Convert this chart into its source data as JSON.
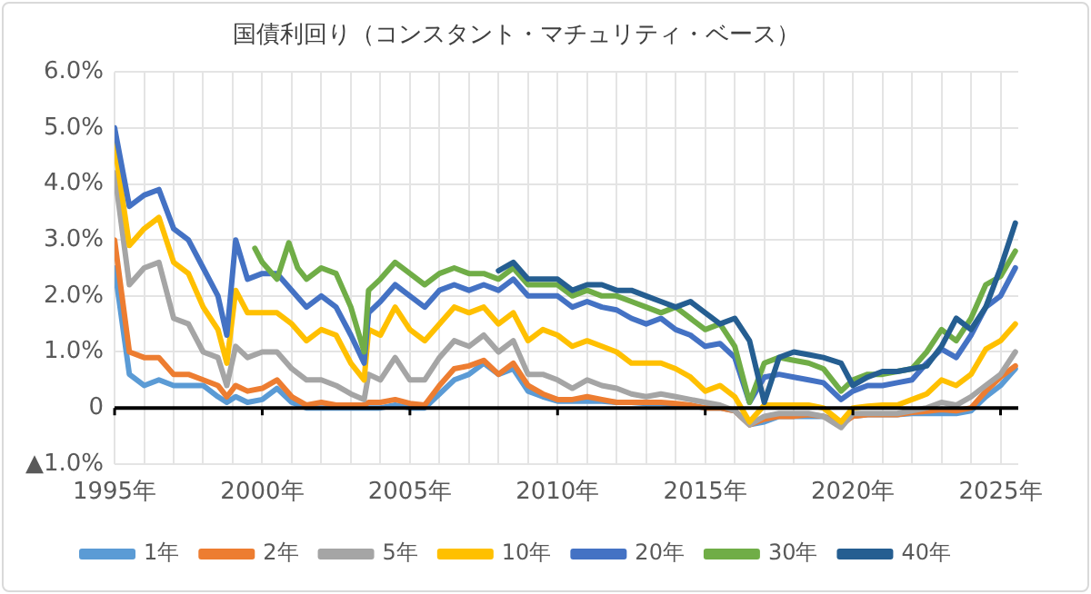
{
  "chart_data": {
    "type": "line",
    "title": "国債利回り（コンスタント・マチュリティ・ベース）",
    "x": [
      1995.0,
      1995.5,
      1996.0,
      1996.5,
      1997.0,
      1997.5,
      1998.0,
      1998.5,
      1998.8,
      1999.1,
      1999.5,
      2000.0,
      2000.5,
      2001.0,
      2001.5,
      2002.0,
      2002.5,
      2003.0,
      2003.45,
      2003.6,
      2004.0,
      2004.5,
      2005.0,
      2005.5,
      2006.0,
      2006.5,
      2007.0,
      2007.5,
      2008.0,
      2008.5,
      2009.0,
      2009.5,
      2010.0,
      2010.5,
      2011.0,
      2011.5,
      2012.0,
      2012.5,
      2013.0,
      2013.5,
      2014.0,
      2014.5,
      2015.0,
      2015.5,
      2016.0,
      2016.5,
      2017.0,
      2017.5,
      2018.0,
      2018.5,
      2019.0,
      2019.6,
      2020.0,
      2020.5,
      2021.0,
      2021.5,
      2022.0,
      2022.5,
      2023.0,
      2023.5,
      2024.0,
      2024.5,
      2025.0,
      2025.5
    ],
    "series": [
      {
        "name": "1年",
        "color": "#5b9bd5",
        "values": [
          2.5,
          0.6,
          0.4,
          0.5,
          0.4,
          0.4,
          0.4,
          0.2,
          0.1,
          0.2,
          0.1,
          0.15,
          0.35,
          0.1,
          0.0,
          0.0,
          0.0,
          0.0,
          0.0,
          0.0,
          0.0,
          0.05,
          0.0,
          0.0,
          0.25,
          0.5,
          0.6,
          0.8,
          0.6,
          0.7,
          0.3,
          0.2,
          0.12,
          0.12,
          0.12,
          0.12,
          0.1,
          0.1,
          0.08,
          0.08,
          0.05,
          0.04,
          0.0,
          0.0,
          -0.05,
          -0.3,
          -0.25,
          -0.15,
          -0.15,
          -0.15,
          -0.15,
          -0.25,
          -0.15,
          -0.12,
          -0.12,
          -0.12,
          -0.1,
          -0.1,
          -0.1,
          -0.1,
          -0.05,
          0.2,
          0.4,
          0.7
        ]
      },
      {
        "name": "2年",
        "color": "#ed7d31",
        "values": [
          3.0,
          1.0,
          0.9,
          0.9,
          0.6,
          0.6,
          0.5,
          0.4,
          0.2,
          0.4,
          0.3,
          0.35,
          0.5,
          0.2,
          0.05,
          0.1,
          0.05,
          0.05,
          0.05,
          0.1,
          0.1,
          0.15,
          0.08,
          0.05,
          0.4,
          0.7,
          0.75,
          0.85,
          0.6,
          0.8,
          0.4,
          0.25,
          0.15,
          0.15,
          0.2,
          0.15,
          0.1,
          0.1,
          0.1,
          0.1,
          0.08,
          0.05,
          0.0,
          0.0,
          -0.05,
          -0.3,
          -0.2,
          -0.15,
          -0.15,
          -0.12,
          -0.15,
          -0.3,
          -0.15,
          -0.12,
          -0.12,
          -0.12,
          -0.08,
          -0.06,
          -0.03,
          -0.05,
          0.0,
          0.3,
          0.55,
          0.75
        ]
      },
      {
        "name": "5年",
        "color": "#a5a5a5",
        "values": [
          4.2,
          2.2,
          2.5,
          2.6,
          1.6,
          1.5,
          1.0,
          0.9,
          0.4,
          1.1,
          0.9,
          1.0,
          1.0,
          0.7,
          0.5,
          0.5,
          0.4,
          0.25,
          0.15,
          0.6,
          0.5,
          0.9,
          0.5,
          0.5,
          0.9,
          1.2,
          1.1,
          1.3,
          1.0,
          1.2,
          0.6,
          0.6,
          0.5,
          0.35,
          0.5,
          0.4,
          0.35,
          0.25,
          0.2,
          0.25,
          0.2,
          0.15,
          0.1,
          0.05,
          -0.05,
          -0.3,
          -0.15,
          -0.1,
          -0.1,
          -0.1,
          -0.15,
          -0.35,
          -0.1,
          -0.1,
          -0.1,
          -0.1,
          -0.05,
          0.0,
          0.1,
          0.05,
          0.2,
          0.4,
          0.6,
          1.0
        ]
      },
      {
        "name": "10年",
        "color": "#ffc000",
        "values": [
          4.7,
          2.9,
          3.2,
          3.4,
          2.6,
          2.4,
          1.8,
          1.4,
          0.8,
          2.1,
          1.7,
          1.7,
          1.7,
          1.5,
          1.2,
          1.4,
          1.3,
          0.8,
          0.5,
          1.4,
          1.3,
          1.8,
          1.4,
          1.2,
          1.5,
          1.8,
          1.7,
          1.8,
          1.5,
          1.7,
          1.2,
          1.4,
          1.3,
          1.1,
          1.2,
          1.1,
          1.0,
          0.8,
          0.8,
          0.8,
          0.7,
          0.55,
          0.3,
          0.4,
          0.2,
          -0.25,
          0.05,
          0.05,
          0.05,
          0.05,
          0.0,
          -0.25,
          0.0,
          0.03,
          0.05,
          0.05,
          0.15,
          0.25,
          0.5,
          0.4,
          0.6,
          1.05,
          1.2,
          1.5
        ]
      },
      {
        "name": "20年",
        "color": "#4472c4",
        "values": [
          5.0,
          3.6,
          3.8,
          3.9,
          3.2,
          3.0,
          2.5,
          2.0,
          1.3,
          3.0,
          2.3,
          2.4,
          2.4,
          2.1,
          1.8,
          2.0,
          1.8,
          1.3,
          0.8,
          1.7,
          1.9,
          2.2,
          2.0,
          1.8,
          2.1,
          2.2,
          2.1,
          2.2,
          2.1,
          2.3,
          2.0,
          2.0,
          2.0,
          1.8,
          1.9,
          1.8,
          1.75,
          1.6,
          1.5,
          1.6,
          1.4,
          1.3,
          1.1,
          1.15,
          0.9,
          0.1,
          0.55,
          0.6,
          0.55,
          0.5,
          0.45,
          0.15,
          0.3,
          0.4,
          0.4,
          0.45,
          0.5,
          0.8,
          1.05,
          0.9,
          1.3,
          1.8,
          2.0,
          2.5
        ]
      },
      {
        "name": "30年",
        "color": "#70ad47",
        "x": [
          1999.75,
          2000.0,
          2000.5,
          2000.9,
          2001.2,
          2001.5,
          2002.0,
          2002.5,
          2003.0,
          2003.45,
          2003.6,
          2004.0,
          2004.5,
          2005.0,
          2005.5,
          2006.0,
          2006.5,
          2007.0,
          2007.5,
          2008.0,
          2008.5,
          2009.0,
          2009.5,
          2010.0,
          2010.5,
          2011.0,
          2011.5,
          2012.0,
          2012.5,
          2013.0,
          2013.5,
          2014.0,
          2014.5,
          2015.0,
          2015.5,
          2016.0,
          2016.5,
          2017.0,
          2017.5,
          2018.0,
          2018.5,
          2019.0,
          2019.6,
          2020.0,
          2020.5,
          2021.0,
          2021.5,
          2022.0,
          2022.5,
          2023.0,
          2023.5,
          2024.0,
          2024.5,
          2025.0,
          2025.5
        ],
        "values": [
          2.85,
          2.6,
          2.3,
          2.95,
          2.5,
          2.3,
          2.5,
          2.4,
          1.8,
          1.0,
          2.1,
          2.3,
          2.6,
          2.4,
          2.2,
          2.4,
          2.5,
          2.4,
          2.4,
          2.3,
          2.5,
          2.2,
          2.2,
          2.2,
          2.0,
          2.1,
          2.0,
          2.0,
          1.9,
          1.8,
          1.7,
          1.8,
          1.6,
          1.4,
          1.5,
          1.1,
          0.1,
          0.8,
          0.9,
          0.85,
          0.8,
          0.7,
          0.3,
          0.5,
          0.6,
          0.6,
          0.65,
          0.7,
          1.0,
          1.4,
          1.2,
          1.6,
          2.2,
          2.35,
          2.8
        ]
      },
      {
        "name": "40年",
        "color": "#255e91",
        "x": [
          2008.0,
          2008.5,
          2009.0,
          2009.5,
          2010.0,
          2010.5,
          2011.0,
          2011.5,
          2012.0,
          2012.5,
          2013.0,
          2013.5,
          2014.0,
          2014.5,
          2015.0,
          2015.5,
          2016.0,
          2016.5,
          2017.0,
          2017.5,
          2018.0,
          2018.5,
          2019.0,
          2019.6,
          2020.0,
          2020.5,
          2021.0,
          2021.5,
          2022.0,
          2022.5,
          2023.0,
          2023.5,
          2024.0,
          2024.5,
          2025.0,
          2025.5
        ],
        "values": [
          2.45,
          2.6,
          2.3,
          2.3,
          2.3,
          2.1,
          2.2,
          2.2,
          2.1,
          2.1,
          2.0,
          1.9,
          1.8,
          1.9,
          1.7,
          1.5,
          1.6,
          1.2,
          0.1,
          0.9,
          1.0,
          0.95,
          0.9,
          0.8,
          0.4,
          0.55,
          0.65,
          0.65,
          0.7,
          0.75,
          1.1,
          1.6,
          1.4,
          1.8,
          2.5,
          3.3
        ]
      }
    ],
    "xlim": [
      1995,
      2025.6
    ],
    "xticks": [
      {
        "value": 1995,
        "label": "1995年"
      },
      {
        "value": 1996,
        "label": null
      },
      {
        "value": 1997,
        "label": null
      },
      {
        "value": 1998,
        "label": null
      },
      {
        "value": 1999,
        "label": null
      },
      {
        "value": 2000,
        "label": "2000年"
      },
      {
        "value": 2001,
        "label": null
      },
      {
        "value": 2002,
        "label": null
      },
      {
        "value": 2003,
        "label": null
      },
      {
        "value": 2004,
        "label": null
      },
      {
        "value": 2005,
        "label": "2005年"
      },
      {
        "value": 2006,
        "label": null
      },
      {
        "value": 2007,
        "label": null
      },
      {
        "value": 2008,
        "label": null
      },
      {
        "value": 2009,
        "label": null
      },
      {
        "value": 2010,
        "label": "2010年"
      },
      {
        "value": 2011,
        "label": null
      },
      {
        "value": 2012,
        "label": null
      },
      {
        "value": 2013,
        "label": null
      },
      {
        "value": 2014,
        "label": null
      },
      {
        "value": 2015,
        "label": "2015年"
      },
      {
        "value": 2016,
        "label": null
      },
      {
        "value": 2017,
        "label": null
      },
      {
        "value": 2018,
        "label": null
      },
      {
        "value": 2019,
        "label": null
      },
      {
        "value": 2020,
        "label": "2020年"
      },
      {
        "value": 2021,
        "label": null
      },
      {
        "value": 2022,
        "label": null
      },
      {
        "value": 2023,
        "label": null
      },
      {
        "value": 2024,
        "label": null
      },
      {
        "value": 2025,
        "label": "2025年"
      }
    ],
    "ylim": [
      -1,
      6
    ],
    "yticks": [
      {
        "value": -1,
        "label": "▲1.0%"
      },
      0,
      {
        "value": 1,
        "label": "1.0%"
      },
      {
        "value": 2,
        "label": "2.0%"
      },
      {
        "value": 3,
        "label": "3.0%"
      },
      {
        "value": 4,
        "label": "4.0%"
      },
      {
        "value": 5,
        "label": "5.0%"
      },
      {
        "value": 6,
        "label": "6.0%"
      }
    ],
    "ref_lines": [
      {
        "axis": "y",
        "value": 0,
        "color": "#000000"
      }
    ],
    "grid": true,
    "legend": "bottom",
    "marker": "none",
    "line_style": "solid"
  }
}
